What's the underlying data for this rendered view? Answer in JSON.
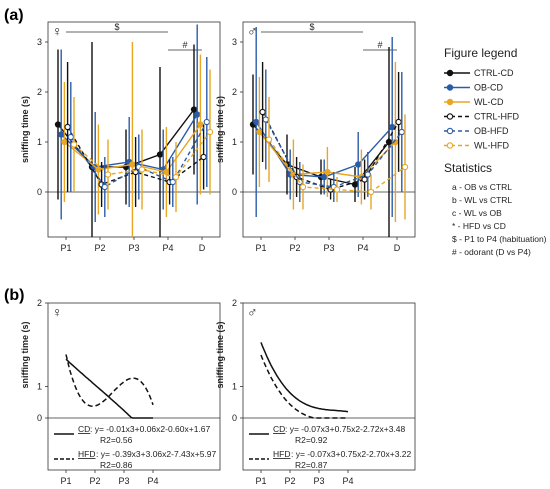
{
  "panel_labels": {
    "a": "(a)",
    "b": "(b)"
  },
  "legend": {
    "title": "Figure legend",
    "items": [
      {
        "label": "CTRL-CD",
        "color": "#111111",
        "style": "solid",
        "filled": true
      },
      {
        "label": "OB-CD",
        "color": "#2a5caa",
        "style": "solid",
        "filled": true
      },
      {
        "label": "WL-CD",
        "color": "#e8a623",
        "style": "solid",
        "filled": true
      },
      {
        "label": "CTRL-HFD",
        "color": "#111111",
        "style": "dashed",
        "filled": false
      },
      {
        "label": "OB-HFD",
        "color": "#2a5caa",
        "style": "dashed",
        "filled": false
      },
      {
        "label": "WL-HFD",
        "color": "#e8a623",
        "style": "dashed",
        "filled": false
      }
    ]
  },
  "statistics": {
    "title": "Statistics",
    "items": [
      "a - OB vs CTRL",
      "b - WL vs CTRL",
      "c - WL vs OB",
      "* - HFD vs CD",
      "$ - P1 to P4 (habituation)",
      "# - odorant (D vs P4)"
    ]
  },
  "chart_data": [
    {
      "type": "line",
      "panel": "a-female",
      "sex_symbol": "♀",
      "ylabel": "sniffing time (s)",
      "categories": [
        "P1",
        "P2",
        "P3",
        "P4",
        "D"
      ],
      "ylim": [
        -0.9,
        3.4
      ],
      "yticks": [
        0,
        1,
        2,
        3
      ],
      "significance": [
        {
          "symbol": "$",
          "from": "P1",
          "to": "P4"
        },
        {
          "symbol": "#",
          "from": "P4",
          "to": "D"
        }
      ],
      "series": [
        {
          "name": "CTRL-CD",
          "values": [
            1.35,
            0.5,
            0.5,
            0.75,
            1.65
          ],
          "err": [
            1.5,
            2.5,
            0.75,
            1.75,
            1.3
          ]
        },
        {
          "name": "OB-CD",
          "values": [
            1.15,
            0.5,
            0.6,
            0.45,
            1.55
          ],
          "err": [
            1.7,
            1.1,
            0.9,
            0.8,
            1.8
          ]
        },
        {
          "name": "WL-CD",
          "values": [
            1.0,
            0.45,
            0.55,
            0.4,
            1.35
          ],
          "err": [
            1.2,
            0.9,
            2.45,
            0.9,
            1.4
          ]
        },
        {
          "name": "CTRL-HFD",
          "values": [
            1.3,
            0.15,
            0.4,
            0.2,
            0.7
          ],
          "err": [
            1.3,
            0.45,
            0.7,
            0.45,
            0.65
          ]
        },
        {
          "name": "OB-HFD",
          "values": [
            1.1,
            0.1,
            0.5,
            0.2,
            1.4
          ],
          "err": [
            1.1,
            0.6,
            0.65,
            0.5,
            1.3
          ]
        },
        {
          "name": "WL-HFD",
          "values": [
            0.95,
            0.35,
            0.45,
            0.3,
            1.2
          ],
          "err": [
            0.95,
            0.7,
            0.8,
            0.7,
            1.25
          ]
        }
      ]
    },
    {
      "type": "line",
      "panel": "a-male",
      "sex_symbol": "♂",
      "ylabel": "sniffing time (s)",
      "categories": [
        "P1",
        "P2",
        "P3",
        "P4",
        "D"
      ],
      "ylim": [
        -0.9,
        3.4
      ],
      "yticks": [
        0,
        1,
        2,
        3
      ],
      "significance": [
        {
          "symbol": "$",
          "from": "P1",
          "to": "P4"
        },
        {
          "symbol": "#",
          "from": "P4",
          "to": "D"
        }
      ],
      "series": [
        {
          "name": "CTRL-CD",
          "values": [
            1.35,
            0.55,
            0.3,
            0.15,
            1.0
          ],
          "err": [
            1.0,
            0.6,
            0.35,
            0.35,
            1.9
          ]
        },
        {
          "name": "OB-CD",
          "values": [
            1.4,
            0.35,
            0.3,
            0.55,
            1.3
          ],
          "err": [
            1.9,
            0.5,
            0.35,
            0.65,
            1.8
          ]
        },
        {
          "name": "WL-CD",
          "values": [
            1.2,
            0.35,
            0.4,
            0.3,
            1.0
          ],
          "err": [
            1.1,
            0.7,
            0.5,
            0.55,
            1.6
          ]
        },
        {
          "name": "CTRL-HFD",
          "values": [
            1.6,
            0.3,
            0.05,
            0.25,
            1.4
          ],
          "err": [
            1.0,
            0.4,
            0.2,
            0.4,
            1.0
          ]
        },
        {
          "name": "OB-HFD",
          "values": [
            1.45,
            0.2,
            0.1,
            0.35,
            1.2
          ],
          "err": [
            1.0,
            0.4,
            0.3,
            0.45,
            1.2
          ]
        },
        {
          "name": "WL-HFD",
          "values": [
            1.05,
            0.1,
            0.05,
            0.0,
            0.5
          ],
          "err": [
            0.85,
            0.45,
            0.25,
            0.35,
            1.05
          ]
        }
      ]
    },
    {
      "type": "line",
      "panel": "b-female",
      "sex_symbol": "♀",
      "ylabel": "sniffing time (s)",
      "categories": [
        "P1",
        "P2",
        "P3",
        "P4"
      ],
      "ylim": [
        0,
        2
      ],
      "yticks": [
        0,
        1,
        2
      ],
      "series": [
        {
          "name": "CD",
          "coefficients": [
            -0.01,
            0.06,
            -0.6,
            1.67
          ],
          "r2": 0.56
        },
        {
          "name": "HFD",
          "coefficients": [
            -0.39,
            3.06,
            -7.43,
            5.97
          ],
          "r2": 0.86
        }
      ],
      "equations": [
        {
          "label": "CD",
          "formula": ": y= -0.01x3+0.06x2-0.60x+1.67",
          "r2": "R2=0.56"
        },
        {
          "label": "HFD",
          "formula": ": y= -0.39x3+3.06x2-7.43x+5.97",
          "r2": "R2=0.86"
        }
      ]
    },
    {
      "type": "line",
      "panel": "b-male",
      "sex_symbol": "♂",
      "ylabel": "sniffing time (s)",
      "categories": [
        "P1",
        "P2",
        "P3",
        "P4"
      ],
      "ylim": [
        0,
        2
      ],
      "yticks": [
        0,
        1,
        2
      ],
      "series": [
        {
          "name": "CD",
          "coefficients": [
            -0.07,
            0.75,
            -2.72,
            3.48
          ],
          "r2": 0.92
        },
        {
          "name": "HFD",
          "coefficients": [
            -0.07,
            0.75,
            -2.7,
            3.22
          ],
          "r2": 0.87
        }
      ],
      "equations": [
        {
          "label": "CD",
          "formula": ": y= -0.07x3+0.75x2-2.72x+3.48",
          "r2": "R2=0.92"
        },
        {
          "label": "HFD",
          "formula": ": y= -0.07x3+0.75x2-2.70x+3.22",
          "r2": "R2=0.87"
        }
      ]
    }
  ]
}
